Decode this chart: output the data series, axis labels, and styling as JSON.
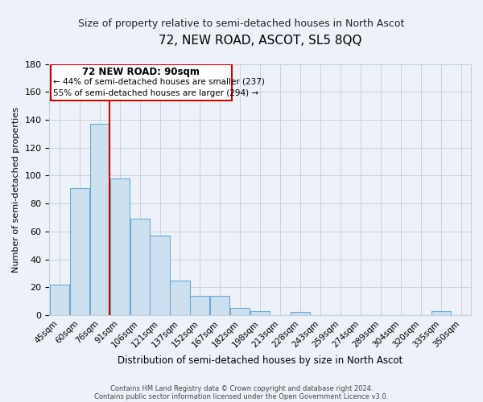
{
  "title": "72, NEW ROAD, ASCOT, SL5 8QQ",
  "subtitle": "Size of property relative to semi-detached houses in North Ascot",
  "xlabel": "Distribution of semi-detached houses by size in North Ascot",
  "ylabel": "Number of semi-detached properties",
  "categories": [
    "45sqm",
    "60sqm",
    "76sqm",
    "91sqm",
    "106sqm",
    "121sqm",
    "137sqm",
    "152sqm",
    "167sqm",
    "182sqm",
    "198sqm",
    "213sqm",
    "228sqm",
    "243sqm",
    "259sqm",
    "274sqm",
    "289sqm",
    "304sqm",
    "320sqm",
    "335sqm",
    "350sqm"
  ],
  "values": [
    22,
    91,
    137,
    98,
    69,
    57,
    25,
    14,
    14,
    5,
    3,
    0,
    2,
    0,
    0,
    0,
    0,
    0,
    0,
    3,
    0
  ],
  "bar_color": "#cce0f0",
  "bar_edge_color": "#6aaad4",
  "vline_x": 2.5,
  "vline_color": "#cc0000",
  "ylim": [
    0,
    180
  ],
  "yticks": [
    0,
    20,
    40,
    60,
    80,
    100,
    120,
    140,
    160,
    180
  ],
  "annotation_title": "72 NEW ROAD: 90sqm",
  "annotation_line1": "← 44% of semi-detached houses are smaller (237)",
  "annotation_line2": "55% of semi-detached houses are larger (294) →",
  "annotation_box_color": "#ffffff",
  "annotation_box_edge": "#cc0000",
  "footer1": "Contains HM Land Registry data © Crown copyright and database right 2024.",
  "footer2": "Contains public sector information licensed under the Open Government Licence v3.0.",
  "bg_color": "#edf2f9",
  "grid_color": "#c8d0e0",
  "title_fontsize": 11,
  "subtitle_fontsize": 9
}
